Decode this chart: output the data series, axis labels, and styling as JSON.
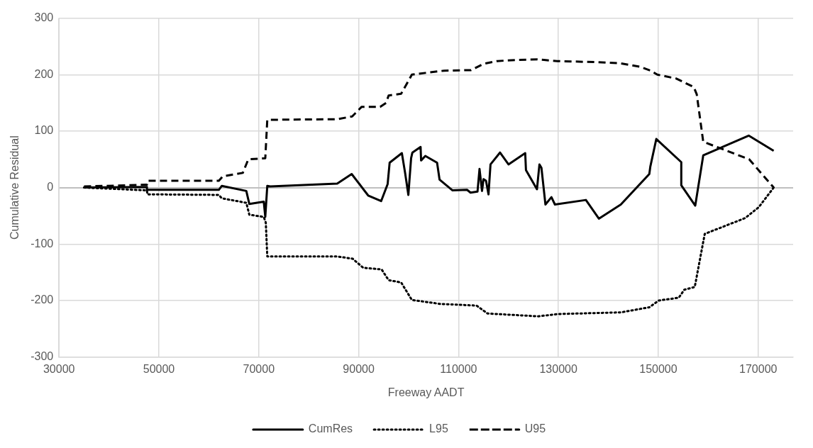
{
  "chart_data": {
    "type": "line",
    "xlabel": "Freeway AADT",
    "ylabel": "Cumulative Residual",
    "xlim": [
      30000,
      177000
    ],
    "xticks": [
      30000,
      50000,
      70000,
      90000,
      110000,
      130000,
      150000,
      170000
    ],
    "ylim": [
      -300,
      300
    ],
    "yticks": [
      -300,
      -200,
      -100,
      0,
      100,
      200,
      300
    ],
    "grid": true,
    "legend": "bottom",
    "marker": "none",
    "series": [
      {
        "name": "CumRes",
        "color": "#000000",
        "line_style": "solid",
        "x": [
          35000,
          47600,
          47600,
          62000,
          62600,
          67500,
          68100,
          71000,
          71300,
          71700,
          72300,
          85700,
          88600,
          91900,
          94500,
          95800,
          96200,
          98650,
          99300,
          99950,
          100500,
          100760,
          102400,
          102500,
          103350,
          105700,
          106200,
          108800,
          111700,
          112400,
          113800,
          114200,
          114700,
          115000,
          115500,
          116000,
          116400,
          118300,
          120000,
          123350,
          123500,
          125700,
          126200,
          126600,
          127400,
          128600,
          129300,
          135500,
          138100,
          142500,
          148200,
          148400,
          149600,
          154600,
          154600,
          157400,
          159000,
          168100,
          173100
        ],
        "values": [
          0,
          1,
          -4,
          -4,
          3,
          -6,
          -29,
          -25,
          -52,
          3,
          2,
          7,
          24,
          -14,
          -24,
          6,
          44,
          61,
          26,
          -13,
          52,
          62,
          72,
          48,
          56,
          44,
          14,
          -5,
          -4,
          -9,
          -7,
          33,
          -6,
          15,
          12,
          -12,
          41,
          62,
          41,
          61,
          31,
          -3,
          41,
          35,
          -30,
          -17,
          -30,
          -22,
          -55,
          -30,
          24,
          37,
          86,
          45,
          4,
          -32,
          57,
          92,
          65
        ]
      },
      {
        "name": "L95",
        "color": "#000000",
        "line_style": "dotted",
        "x": [
          35000,
          47600,
          47700,
          62000,
          62600,
          67500,
          68100,
          71000,
          71400,
          71700,
          85700,
          88800,
          90900,
          94600,
          96000,
          98500,
          100650,
          106300,
          113600,
          115800,
          126000,
          129800,
          142500,
          148200,
          150100,
          154100,
          155200,
          157300,
          159300,
          167400,
          170100,
          173100
        ],
        "values": [
          0,
          -5,
          -12,
          -13,
          -19,
          -27,
          -48,
          -52,
          -62,
          -122,
          -122,
          -126,
          -142,
          -145,
          -164,
          -168,
          -199,
          -206,
          -209,
          -223,
          -228,
          -224,
          -221,
          -212,
          -200,
          -195,
          -181,
          -176,
          -82,
          -54,
          -35,
          0
        ]
      },
      {
        "name": "U95",
        "color": "#000000",
        "line_style": "dashed",
        "x": [
          35000,
          47600,
          47700,
          62000,
          62800,
          66800,
          67900,
          71300,
          71700,
          85700,
          88700,
          90600,
          94300,
          95500,
          96000,
          98500,
          100400,
          100650,
          103350,
          107100,
          112500,
          115000,
          117700,
          121700,
          125800,
          127100,
          129800,
          137900,
          142500,
          146300,
          148500,
          149800,
          153600,
          157100,
          157700,
          159000,
          162300,
          168200,
          173100
        ],
        "values": [
          2,
          5,
          12,
          12,
          20,
          26,
          50,
          52,
          120,
          121,
          126,
          143,
          143,
          150,
          163,
          166,
          196,
          200,
          203,
          207,
          208,
          219,
          224,
          226,
          227,
          226,
          224,
          222,
          220,
          214,
          207,
          200,
          193,
          178,
          165,
          81,
          70,
          50,
          0
        ]
      }
    ]
  }
}
